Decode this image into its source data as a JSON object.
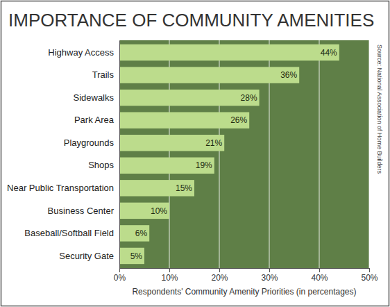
{
  "chart_data": {
    "type": "bar",
    "orientation": "horizontal",
    "title": "IMPORTANCE OF COMMUNITY AMENITIES",
    "x_label": "Respondents' Community Amenity Priorities (in percentages)",
    "annotations": [
      "Source: National Association of Home Builders"
    ],
    "categories": [
      "Highway Access",
      "Trails",
      "Sidewalks",
      "Park Area",
      "Playgrounds",
      "Shops",
      "Near Public Transportation",
      "Business Center",
      "Baseball/Softball Field",
      "Security Gate"
    ],
    "values": [
      44,
      36,
      28,
      26,
      21,
      19,
      15,
      10,
      6,
      5
    ],
    "value_labels": [
      "44%",
      "36%",
      "28%",
      "26%",
      "21%",
      "19%",
      "15%",
      "10%",
      "6%",
      "5%"
    ],
    "data_labels": true,
    "color": "#bcdc8c",
    "xlim": [
      0,
      50
    ],
    "xticks": [
      {
        "value": 0,
        "label": "0%"
      },
      {
        "value": 10,
        "label": "10%"
      },
      {
        "value": 20,
        "label": "20%"
      },
      {
        "value": 30,
        "label": "30%"
      },
      {
        "value": 40,
        "label": "40%"
      },
      {
        "value": 50,
        "label": "50%"
      }
    ],
    "grid": true
  }
}
